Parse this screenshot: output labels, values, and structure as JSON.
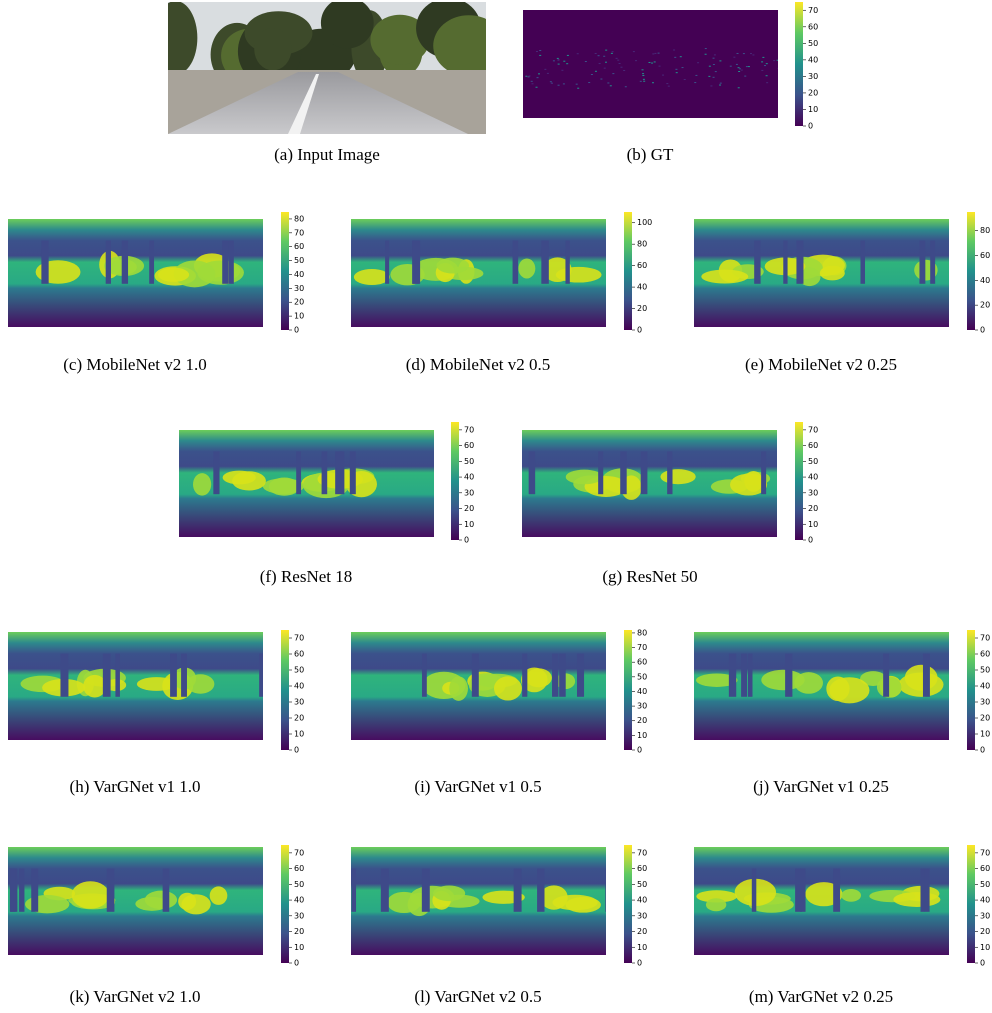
{
  "panels": [
    {
      "caption": "(a) Input Image"
    },
    {
      "caption": "(b) GT",
      "colorbar": {
        "lim": [
          0,
          75
        ],
        "ticks": [
          0,
          10,
          20,
          30,
          40,
          50,
          60,
          70
        ]
      }
    },
    {
      "caption": "(c) MobileNet v2 1.0",
      "colorbar": {
        "lim": [
          0,
          85
        ],
        "ticks": [
          0,
          10,
          20,
          30,
          40,
          50,
          60,
          70,
          80
        ]
      }
    },
    {
      "caption": "(d) MobileNet v2 0.5",
      "colorbar": {
        "lim": [
          0,
          110
        ],
        "ticks": [
          0,
          20,
          40,
          60,
          80,
          100
        ]
      }
    },
    {
      "caption": "(e) MobileNet v2 0.25",
      "colorbar": {
        "lim": [
          0,
          95
        ],
        "ticks": [
          0,
          20,
          40,
          60,
          80
        ]
      }
    },
    {
      "caption": "(f) ResNet 18",
      "colorbar": {
        "lim": [
          0,
          75
        ],
        "ticks": [
          0,
          10,
          20,
          30,
          40,
          50,
          60,
          70
        ]
      }
    },
    {
      "caption": "(g) ResNet 50",
      "colorbar": {
        "lim": [
          0,
          75
        ],
        "ticks": [
          0,
          10,
          20,
          30,
          40,
          50,
          60,
          70
        ]
      }
    },
    {
      "caption": "(h) VarGNet v1 1.0",
      "colorbar": {
        "lim": [
          0,
          75
        ],
        "ticks": [
          0,
          10,
          20,
          30,
          40,
          50,
          60,
          70
        ]
      }
    },
    {
      "caption": "(i) VarGNet v1 0.5",
      "colorbar": {
        "lim": [
          0,
          82
        ],
        "ticks": [
          0,
          10,
          20,
          30,
          40,
          50,
          60,
          70,
          80
        ]
      }
    },
    {
      "caption": "(j) VarGNet v1 0.25",
      "colorbar": {
        "lim": [
          0,
          75
        ],
        "ticks": [
          0,
          10,
          20,
          30,
          40,
          50,
          60,
          70
        ]
      }
    },
    {
      "caption": "(k) VarGNet v2 1.0",
      "colorbar": {
        "lim": [
          0,
          75
        ],
        "ticks": [
          0,
          10,
          20,
          30,
          40,
          50,
          60,
          70
        ]
      }
    },
    {
      "caption": "(l) VarGNet v2 0.5",
      "colorbar": {
        "lim": [
          0,
          75
        ],
        "ticks": [
          0,
          10,
          20,
          30,
          40,
          50,
          60,
          70
        ]
      }
    },
    {
      "caption": "(m) VarGNet v2 0.25",
      "colorbar": {
        "lim": [
          0,
          75
        ],
        "ticks": [
          0,
          10,
          20,
          30,
          40,
          50,
          60,
          70
        ]
      }
    }
  ]
}
